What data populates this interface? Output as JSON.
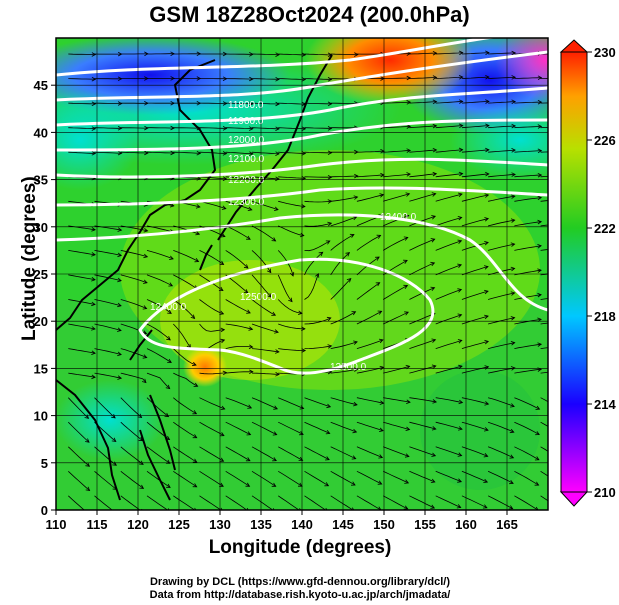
{
  "title": "GSM 18Z28Oct2024 (200.0hPa)",
  "x_axis": {
    "label": "Longitude (degrees)",
    "range": [
      110,
      170
    ],
    "ticks": [
      "110",
      "115",
      "120",
      "125",
      "130",
      "135",
      "140",
      "145",
      "150",
      "155",
      "160",
      "165"
    ]
  },
  "y_axis": {
    "label": "Latitude  (degrees)",
    "range": [
      0,
      50
    ],
    "ticks": [
      "0",
      "5",
      "10",
      "15",
      "20",
      "25",
      "30",
      "35",
      "40",
      "45"
    ]
  },
  "colorbar": {
    "range": [
      210,
      230
    ],
    "ticks": [
      "210",
      "214",
      "218",
      "222",
      "226",
      "230"
    ]
  },
  "contour_labels": [
    "12400.0",
    "12400.0",
    "12500.0",
    "12500.0",
    "12300.0",
    "12200.0",
    "12100.0",
    "12000.0",
    "11900.0",
    "11800.0"
  ],
  "credits": {
    "line1": "Drawing by DCL (https://www.gfd-dennou.org/library/dcl/)",
    "line2": "Data from http://database.rish.kyoto-u.ac.jp/arch/jmadata/"
  },
  "colors": {
    "field_high": "#ff3b00",
    "field_mid": "#2bd52b",
    "field_low": "#1a1aff",
    "contour": "#ffffff",
    "streamline": "#000000"
  }
}
